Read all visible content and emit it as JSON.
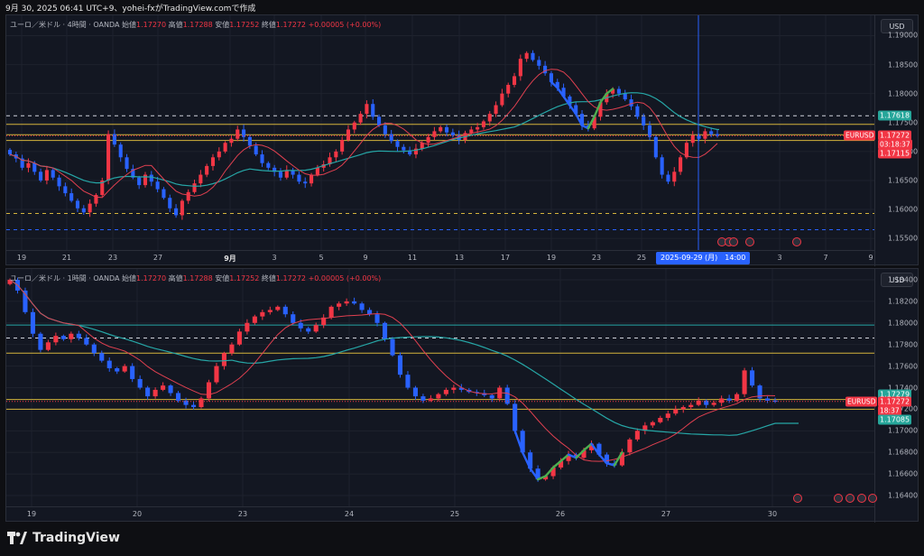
{
  "header": {
    "capture_line": "9月 30, 2025 06:41 UTC+9、yohei-fxがTradingView.comで作成"
  },
  "legend": {
    "open_label": "始値",
    "high_label": "高値",
    "low_label": "安値",
    "close_label": "終値",
    "open": "1.17270",
    "high": "1.17288",
    "low": "1.17252",
    "close": "1.17272",
    "change": "+0.00005 (+0.00%)"
  },
  "chart1": {
    "title": "ユーロ／米ドル · 4時間 · OANDA",
    "currency": "USD",
    "y_ticks": [
      "1.19000",
      "1.18500",
      "1.18000",
      "1.17500",
      "1.17000",
      "1.16500",
      "1.16000",
      "1.15500"
    ],
    "x_ticks": [
      "19",
      "21",
      "23",
      "27",
      "9月",
      "3",
      "5",
      "9",
      "11",
      "13",
      "17",
      "19",
      "23",
      "25",
      "3",
      "7",
      "9"
    ],
    "crosshair_label": "2025-09-29 (月)　14:00",
    "symbol": "EURUSD",
    "tag_top": "1.17618",
    "tag_price": "1.17272",
    "tag_countdown": "03:18:37",
    "tag_low": "1.17115"
  },
  "chart2": {
    "title": "ユーロ／米ドル · 1時間 · OANDA",
    "currency": "USD",
    "y_ticks": [
      "1.18400",
      "1.18200",
      "1.18000",
      "1.17800",
      "1.17600",
      "1.17400",
      "1.17200",
      "1.17000",
      "1.16800",
      "1.16600",
      "1.16400"
    ],
    "x_ticks": [
      "19",
      "20",
      "23",
      "24",
      "25",
      "26",
      "27",
      "30"
    ],
    "symbol": "EURUSD",
    "tag_top": "1.17279",
    "tag_price": "1.17272",
    "tag_countdown": "18:37",
    "tag_low": "1.17085"
  },
  "footer": {
    "brand": "TradingView"
  },
  "colors": {
    "bull": "#f23645",
    "bear": "#2962ff",
    "ma_fast": "#e04050",
    "ma_slow": "#26a6a6",
    "level": "#d4b43c"
  },
  "chart_data": [
    {
      "type": "candlestick",
      "title": "ユーロ／米ドル · 4時間 · OANDA",
      "ylim": [
        1.153,
        1.1935
      ],
      "last_price": 1.17272,
      "horizontal_levels": [
        1.17618,
        1.1729,
        1.1719,
        1.1593
      ],
      "series_close": [
        1.1695,
        1.1688,
        1.1672,
        1.168,
        1.1665,
        1.165,
        1.1668,
        1.1655,
        1.164,
        1.1628,
        1.1615,
        1.1602,
        1.1595,
        1.161,
        1.1625,
        1.165,
        1.173,
        1.1712,
        1.169,
        1.167,
        1.1655,
        1.1642,
        1.166,
        1.1648,
        1.1635,
        1.162,
        1.1602,
        1.159,
        1.1615,
        1.163,
        1.1645,
        1.166,
        1.1675,
        1.169,
        1.17,
        1.1715,
        1.1722,
        1.1738,
        1.1725,
        1.171,
        1.1695,
        1.168,
        1.1672,
        1.1665,
        1.1655,
        1.1668,
        1.166,
        1.1648,
        1.1645,
        1.166,
        1.1672,
        1.1678,
        1.169,
        1.17,
        1.172,
        1.1738,
        1.175,
        1.1765,
        1.1782,
        1.176,
        1.1745,
        1.173,
        1.1718,
        1.1708,
        1.1702,
        1.1695,
        1.1705,
        1.1715,
        1.1725,
        1.1735,
        1.1742,
        1.1733,
        1.1728,
        1.172,
        1.1732,
        1.1738,
        1.1742,
        1.1752,
        1.1765,
        1.178,
        1.18,
        1.1815,
        1.183,
        1.186,
        1.187,
        1.1858,
        1.1848,
        1.1835,
        1.182,
        1.181,
        1.1795,
        1.178,
        1.1765,
        1.1745,
        1.174,
        1.176,
        1.1785,
        1.18,
        1.1808,
        1.18,
        1.179,
        1.1778,
        1.176,
        1.1745,
        1.1725,
        1.169,
        1.166,
        1.1648,
        1.1665,
        1.169,
        1.1715,
        1.1728,
        1.1722,
        1.1735,
        1.173,
        1.1727
      ]
    },
    {
      "type": "candlestick",
      "title": "ユーロ／米ドル · 1時間 · OANDA",
      "ylim": [
        1.163,
        1.185
      ],
      "last_price": 1.17272,
      "horizontal_levels": [
        1.1786,
        1.1772,
        1.1729,
        1.172
      ],
      "series_close": [
        1.184,
        1.183,
        1.181,
        1.179,
        1.1775,
        1.1782,
        1.1788,
        1.1785,
        1.179,
        1.1786,
        1.178,
        1.1772,
        1.1765,
        1.1758,
        1.1755,
        1.176,
        1.1748,
        1.174,
        1.1732,
        1.1738,
        1.1742,
        1.1735,
        1.1728,
        1.1724,
        1.1722,
        1.173,
        1.1745,
        1.176,
        1.1772,
        1.178,
        1.1792,
        1.18,
        1.1806,
        1.181,
        1.1812,
        1.1815,
        1.1808,
        1.18,
        1.1795,
        1.1792,
        1.1798,
        1.1805,
        1.1815,
        1.1818,
        1.182,
        1.1818,
        1.1812,
        1.1808,
        1.18,
        1.1785,
        1.177,
        1.1752,
        1.174,
        1.1732,
        1.1728,
        1.173,
        1.1734,
        1.1738,
        1.174,
        1.1738,
        1.1736,
        1.1735,
        1.1733,
        1.173,
        1.174,
        1.1725,
        1.17,
        1.168,
        1.1665,
        1.1655,
        1.1658,
        1.1666,
        1.1672,
        1.1678,
        1.1675,
        1.1682,
        1.1688,
        1.1678,
        1.167,
        1.1668,
        1.168,
        1.1692,
        1.17,
        1.1705,
        1.1708,
        1.1712,
        1.1716,
        1.172,
        1.1722,
        1.1724,
        1.1728,
        1.1724,
        1.1726,
        1.173,
        1.1728,
        1.1734,
        1.1756,
        1.1742,
        1.173,
        1.1728,
        1.1727
      ]
    }
  ]
}
